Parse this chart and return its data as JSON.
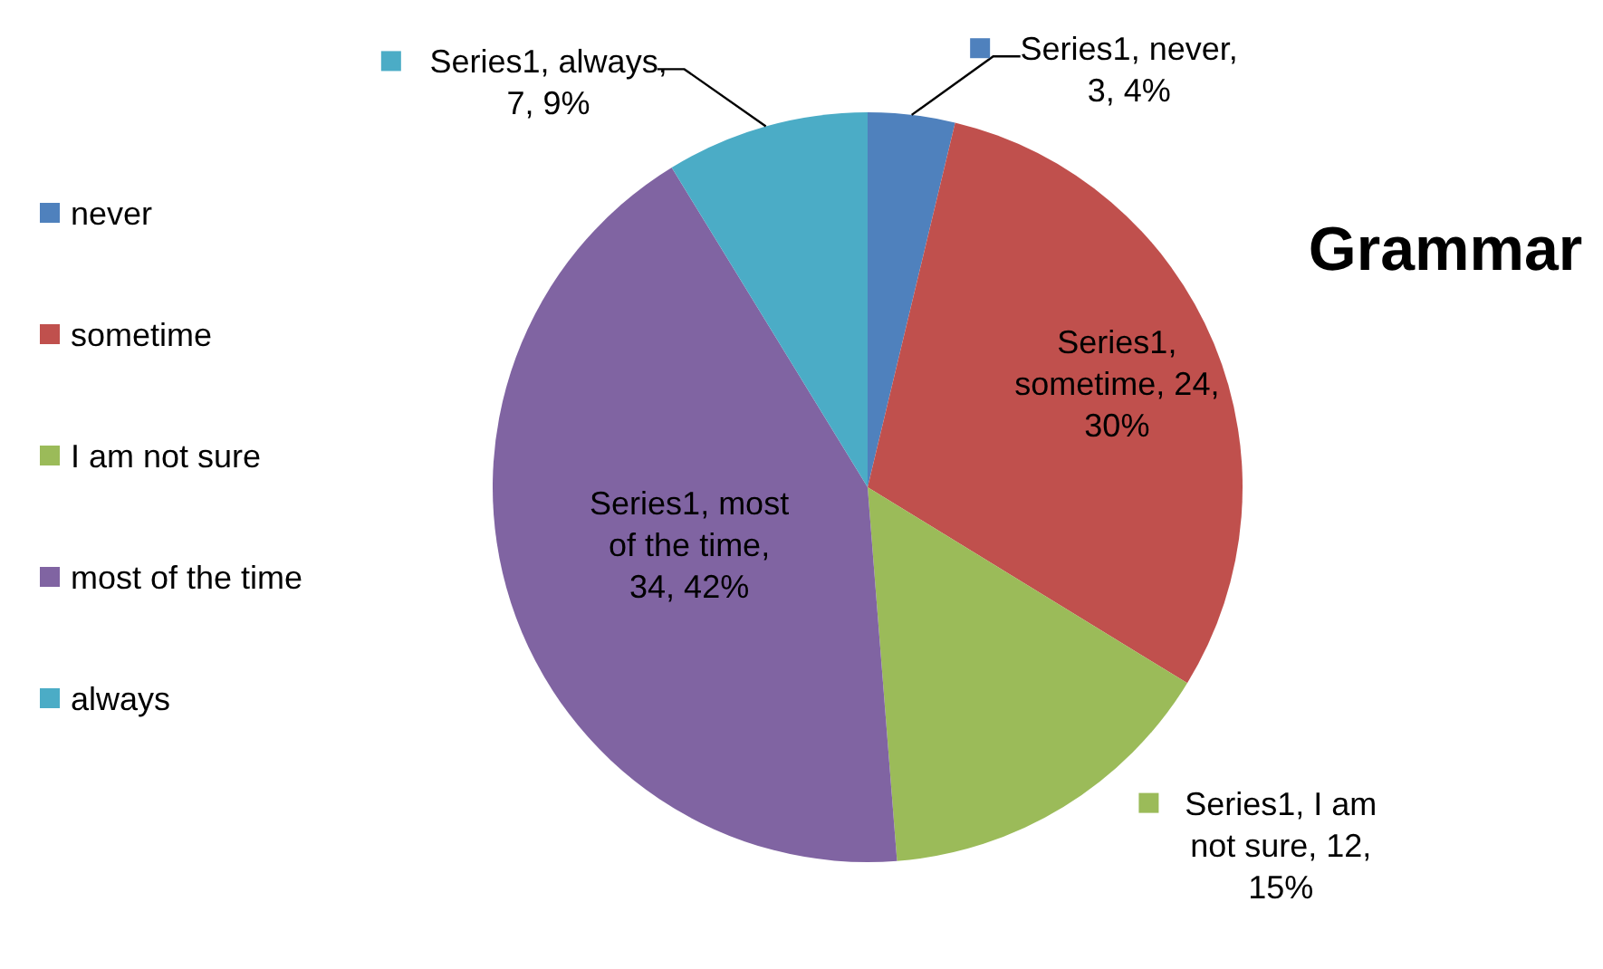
{
  "chart_data": {
    "type": "pie",
    "title": "Grammar",
    "categories": [
      "never",
      "sometime",
      "I am not sure",
      "most of the time",
      "always"
    ],
    "values": [
      3,
      24,
      12,
      34,
      7
    ],
    "colors": [
      "#4f81bd",
      "#c0504d",
      "#9bbb59",
      "#8064a2",
      "#4bacc6"
    ],
    "value_labels": [
      "Series1, never, 3, 4%",
      "Series1, sometime, 24, 30%",
      "Series1, I am not sure, 12, 15%",
      "Series1, most of the time, 34, 42%",
      "Series1, always, 7, 9%"
    ],
    "legend": "left"
  }
}
